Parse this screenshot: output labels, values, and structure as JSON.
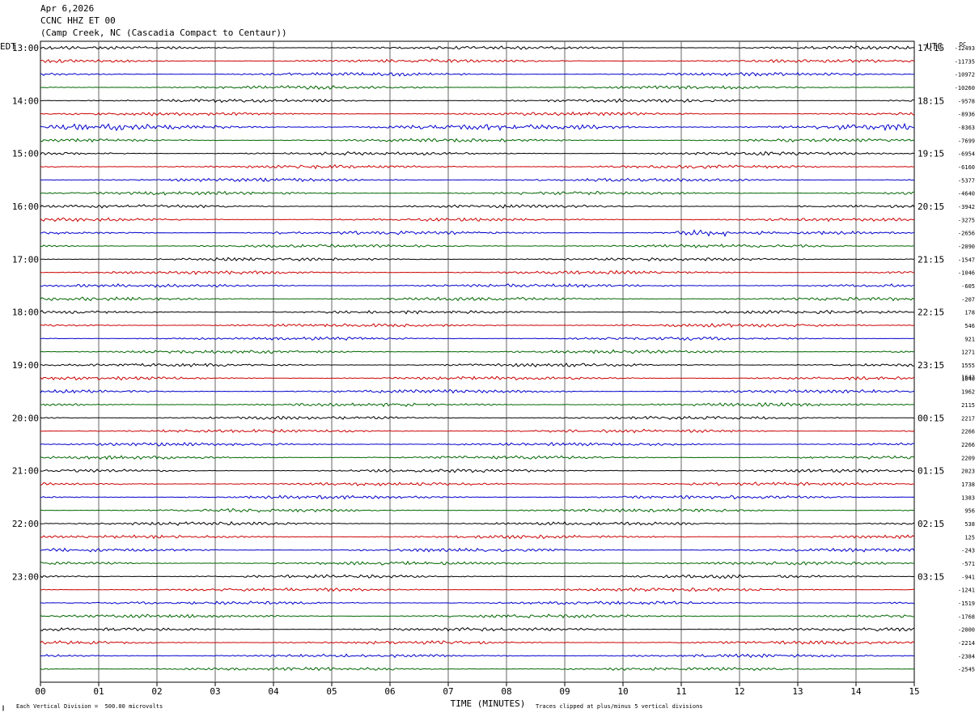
{
  "header": {
    "date": "Apr 6,2026",
    "station": "CCNC HHZ ET 00",
    "location": "(Camp Creek, NC (Cascadia Compact to Centaur))"
  },
  "left_timezone": "EDT",
  "right_timezone": "UTC",
  "dc_label": "DC",
  "footer": {
    "xlabel": "TIME (MINUTES)",
    "scale_note": "Each Vertical Division =  500.00 microvolts",
    "clip_note": "Traces clipped at plus/minus 5 vertical divisions",
    "corner_mark": "∥"
  },
  "colors": {
    "trace_cycle": [
      "#000000",
      "#cc0000",
      "#0000cc",
      "#006600"
    ],
    "grid": "#666666"
  },
  "chart_data": {
    "type": "helicorder",
    "x_range": [
      0,
      15
    ],
    "x_ticks": [
      "00",
      "01",
      "02",
      "03",
      "04",
      "05",
      "06",
      "07",
      "08",
      "09",
      "10",
      "11",
      "12",
      "13",
      "14",
      "15"
    ],
    "trace_count": 48,
    "left_hour_labels": [
      "13:00",
      "14:00",
      "15:00",
      "16:00",
      "17:00",
      "18:00",
      "19:00",
      "20:00",
      "21:00",
      "22:00",
      "23:00"
    ],
    "right_hour_labels": [
      "17:15",
      "18:15",
      "19:15",
      "20:15",
      "21:15",
      "22:15",
      "23:15",
      "00:15",
      "01:15",
      "02:15",
      "03:15"
    ],
    "dc_offsets": [
      "-12493",
      "-11735",
      "-10972",
      "-10260",
      "-9578",
      "-8936",
      "-8363",
      "-7699",
      "-6954",
      "-6160",
      "-5377",
      "-4640",
      "-3942",
      "-3275",
      "-2656",
      "-2090",
      "-1547",
      "-1046",
      "-605",
      "-207",
      "178",
      "546",
      "921",
      "1271",
      "1555",
      "1840",
      "1962",
      "2115",
      "2217",
      "2266",
      "2266",
      "2209",
      "2023",
      "1738",
      "1383",
      "956",
      "538",
      "125",
      "-243",
      "-571",
      "-941",
      "-1241",
      "-1519",
      "-1768",
      "-2000",
      "-2214",
      "-2384",
      "-2545"
    ],
    "overprint_label": "1643"
  }
}
